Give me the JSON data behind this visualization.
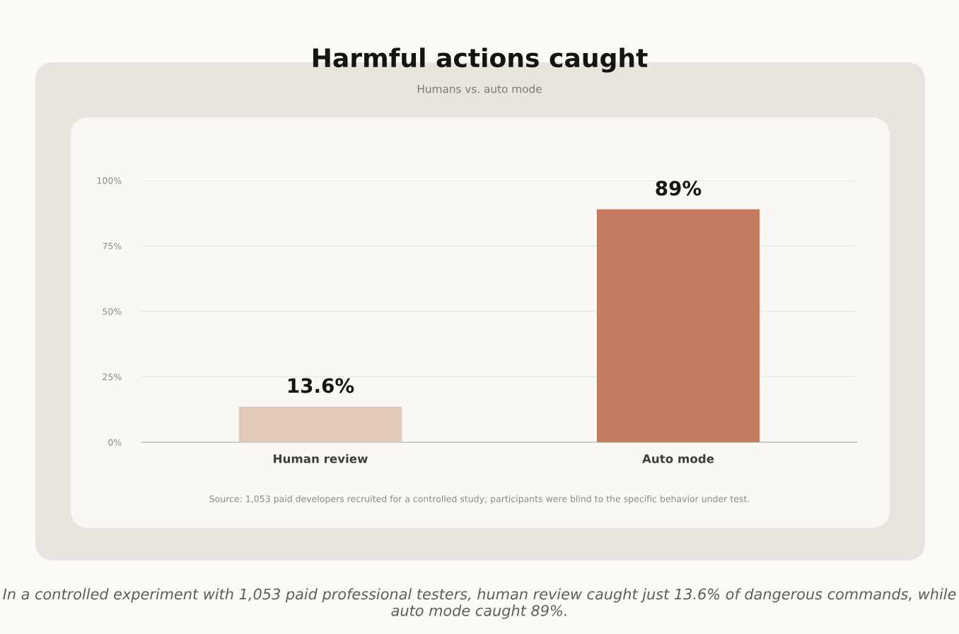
{
  "chart_data": {
    "type": "bar",
    "title": "Harmful actions caught",
    "subtitle": "Humans vs. auto mode",
    "categories": [
      "Human review",
      "Auto mode"
    ],
    "values": [
      13.6,
      89
    ],
    "colors": [
      "#e1c8b7",
      "#c47b5e"
    ],
    "value_labels": [
      "13.6%",
      "89%"
    ],
    "ylim": [
      0,
      100
    ],
    "yticks": [
      {
        "value": 0,
        "label": "0%"
      },
      {
        "value": 25,
        "label": "25%"
      },
      {
        "value": 50,
        "label": "50%"
      },
      {
        "value": 75,
        "label": "75%"
      },
      {
        "value": 100,
        "label": "100%"
      }
    ],
    "grid": "y",
    "annotations": [
      "Source: 1,053 paid developers recruited for a controlled study; participants were blind to the specific behavior under test.",
      "In a controlled experiment with 1,053 paid professional testers, human review caught just 13.6% of dangerous commands, while auto mode caught 89%."
    ]
  }
}
